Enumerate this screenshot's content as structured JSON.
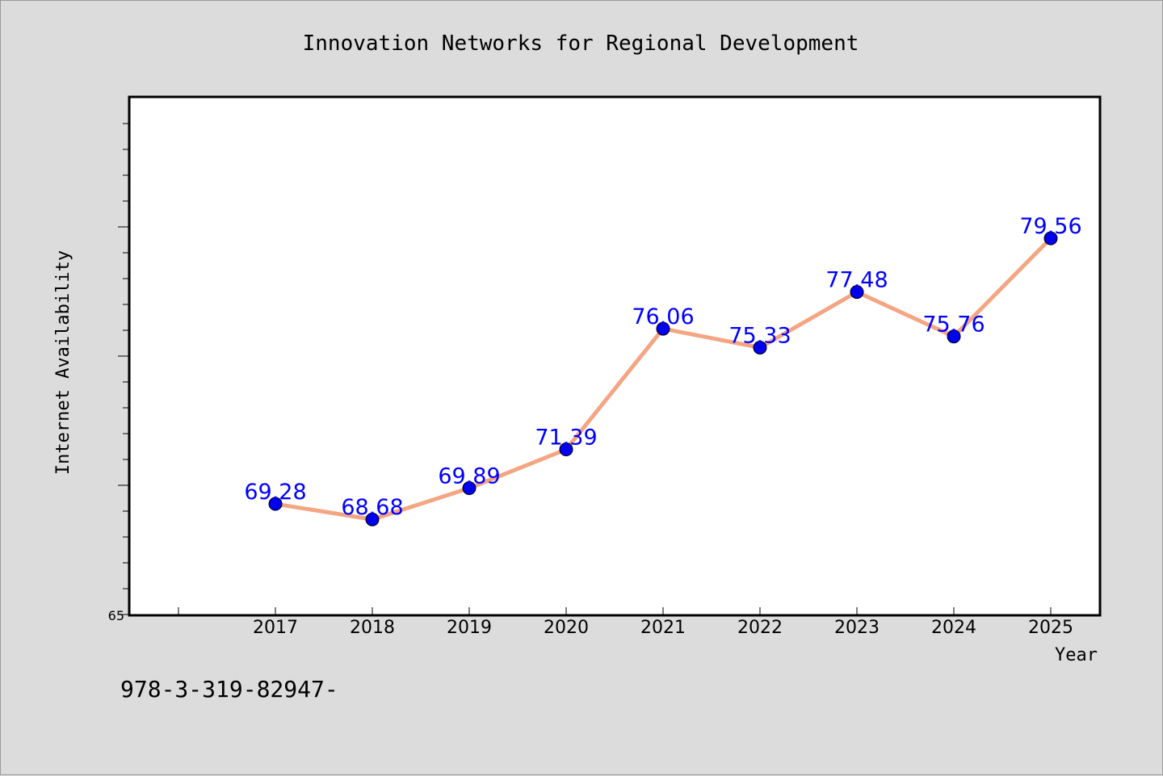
{
  "chart_data": {
    "type": "line",
    "title": "Innovation Networks for Regional Development",
    "xlabel": "Year",
    "ylabel": "Internet Availability",
    "categories": [
      "2017",
      "2018",
      "2019",
      "2020",
      "2021",
      "2022",
      "2023",
      "2024",
      "2025"
    ],
    "series": [
      {
        "values": [
          69.28,
          68.68,
          69.89,
          71.39,
          76.06,
          75.33,
          77.48,
          75.76,
          79.56
        ],
        "labels": [
          "69.28",
          "68.68",
          "69.89",
          "71.39",
          "76.06",
          "75.33",
          "77.48",
          "75.76",
          "79.56"
        ],
        "line_color": "#f4a582",
        "marker_color": "#0000ee",
        "label_color": "#0000ff"
      }
    ],
    "ylim": [
      65,
      85
    ],
    "y_tick_labels": [
      "65"
    ],
    "grid": false
  },
  "footer_text": "978-3-319-82947-"
}
